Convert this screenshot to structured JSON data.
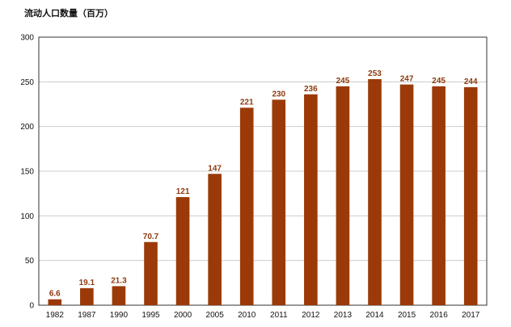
{
  "chart_data": {
    "type": "bar",
    "title": "",
    "ylabel": "流动人口数量（百万）",
    "xlabel": "",
    "categories": [
      "1982",
      "1987",
      "1990",
      "1995",
      "2000",
      "2005",
      "2010",
      "2011",
      "2012",
      "2013",
      "2014",
      "2015",
      "2016",
      "2017"
    ],
    "values": [
      6.6,
      19.1,
      21.3,
      70.7,
      121,
      147,
      221,
      230,
      236,
      245,
      253,
      247,
      245,
      244
    ],
    "data_labels": [
      "6.6",
      "19.1",
      "21.3",
      "70.7",
      "121",
      "147",
      "221",
      "230",
      "236",
      "245",
      "253",
      "247",
      "245",
      "244"
    ],
    "ylim": [
      0,
      300
    ],
    "yticks": [
      0,
      50,
      100,
      150,
      200,
      250,
      300
    ],
    "grid": true,
    "legend": "none",
    "colors": {
      "bar": "#9b3a08",
      "label": "#8b3a0f",
      "grid": "#cccccc",
      "axis": "#333333"
    }
  }
}
